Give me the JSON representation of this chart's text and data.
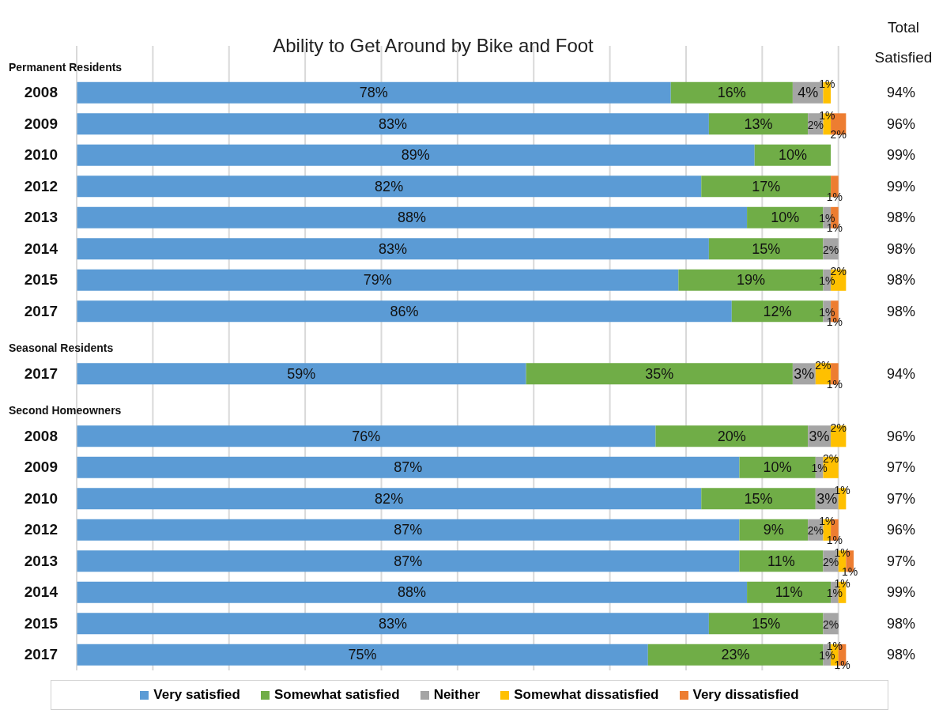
{
  "chart_data": {
    "type": "bar",
    "orientation": "horizontal",
    "stacked": true,
    "title": "Ability to Get Around by Bike and Foot",
    "categories": [
      "Permanent Residents",
      "2008",
      "2009",
      "2010",
      "2012",
      "2013",
      "2014",
      "2015",
      "2017",
      "Seasonal Residents",
      "2017",
      "Second Homeowners",
      "2008",
      "2009",
      "2010",
      "2012",
      "2013",
      "2014",
      "2015",
      "2017"
    ],
    "series": [
      {
        "name": "Very satisfied",
        "color": "#5b9bd5",
        "values": [
          null,
          78,
          83,
          89,
          82,
          88,
          83,
          79,
          86,
          null,
          59,
          null,
          76,
          87,
          82,
          87,
          87,
          88,
          83,
          75
        ],
        "value_labels": [
          null,
          "78%",
          "83%",
          "89%",
          "82%",
          "88%",
          "83%",
          "79%",
          "86%",
          null,
          "59%",
          null,
          "76%",
          "87%",
          "82%",
          "87%",
          "87%",
          "88%",
          "83%",
          "75%"
        ]
      },
      {
        "name": "Somewhat satisfied",
        "color": "#70ad47",
        "values": [
          null,
          16,
          13,
          10,
          17,
          10,
          15,
          19,
          12,
          null,
          35,
          null,
          20,
          10,
          15,
          9,
          11,
          11,
          15,
          23
        ],
        "value_labels": [
          null,
          "16%",
          "13%",
          "10%",
          "17%",
          "10%",
          "15%",
          "19%",
          "12%",
          null,
          "35%",
          null,
          "20%",
          "10%",
          "15%",
          "9%",
          "11%",
          "11%",
          "15%",
          "23%"
        ]
      },
      {
        "name": "Neither",
        "color": "#a5a5a5",
        "values": [
          null,
          4,
          2,
          null,
          null,
          1,
          2,
          1,
          1,
          null,
          3,
          null,
          3,
          1,
          3,
          2,
          2,
          1,
          2,
          1
        ],
        "value_labels": [
          null,
          "4%",
          "2%",
          null,
          null,
          "1%",
          "2%",
          "1%",
          "1%",
          null,
          "3%",
          null,
          "3%",
          "1%",
          "3%",
          "2%",
          "2%",
          "1%",
          "2%",
          "1%"
        ]
      },
      {
        "name": "Somewhat dissatisfied",
        "color": "#ffc000",
        "values": [
          null,
          1,
          1,
          null,
          null,
          null,
          null,
          2,
          null,
          null,
          2,
          null,
          2,
          2,
          1,
          1,
          1,
          1,
          null,
          1
        ],
        "value_labels": [
          null,
          "1%",
          "1%",
          null,
          null,
          null,
          null,
          "2%",
          null,
          null,
          "2%",
          null,
          "2%",
          "2%",
          "1%",
          "1%",
          "1%",
          "1%",
          null,
          "1%"
        ]
      },
      {
        "name": "Very dissatisfied",
        "color": "#ed7d31",
        "values": [
          null,
          null,
          2,
          null,
          1,
          1,
          null,
          null,
          1,
          null,
          1,
          null,
          null,
          null,
          null,
          1,
          1,
          null,
          null,
          1
        ],
        "value_labels": [
          null,
          null,
          "2%",
          null,
          "1%",
          "1%",
          null,
          null,
          "1%",
          null,
          "1%",
          null,
          null,
          null,
          null,
          "1%",
          "1%",
          null,
          null,
          "1%"
        ]
      }
    ],
    "y2_categories": [
      null,
      "94%",
      "96%",
      "99%",
      "99%",
      "98%",
      "98%",
      "98%",
      "98%",
      null,
      "94%",
      null,
      "96%",
      "97%",
      "97%",
      "96%",
      "97%",
      "99%",
      "98%",
      "98%"
    ],
    "annotations": [
      "Total Satisfied"
    ],
    "xlim": [
      0,
      102
    ],
    "xticks": [
      {
        "value": 0,
        "label": null
      },
      {
        "value": 10,
        "label": null
      },
      {
        "value": 20,
        "label": null
      },
      {
        "value": 30,
        "label": null
      },
      {
        "value": 40,
        "label": null
      },
      {
        "value": 50,
        "label": null
      },
      {
        "value": 60,
        "label": null
      },
      {
        "value": 70,
        "label": null
      },
      {
        "value": 80,
        "label": null
      },
      {
        "value": 90,
        "label": null
      },
      {
        "value": 100,
        "label": null
      }
    ],
    "tick_labels": "y",
    "grid": "x",
    "legend": "bottom"
  }
}
